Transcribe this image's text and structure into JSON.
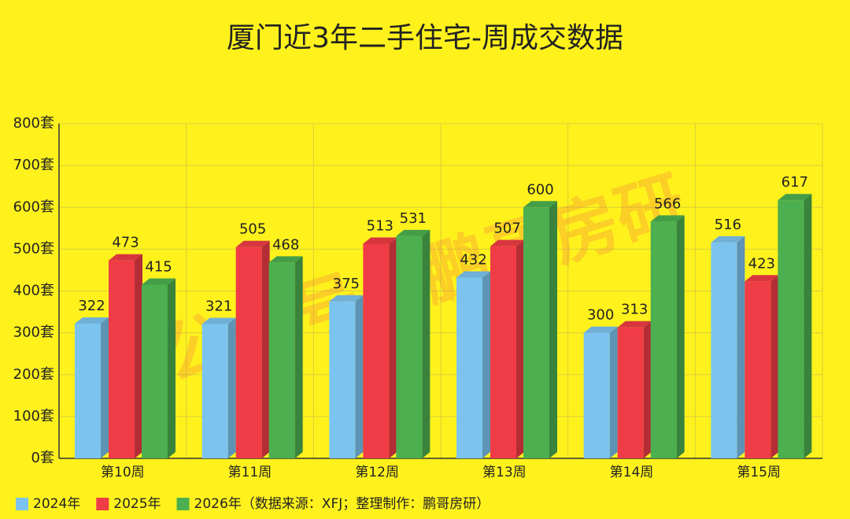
{
  "chart_data": {
    "type": "bar3d",
    "title": "厦门近3年二手住宅-周成交数据",
    "categories": [
      "第10周",
      "第11周",
      "第12周",
      "第13周",
      "第14周",
      "第15周"
    ],
    "series": [
      {
        "name": "2024年",
        "color": "#7cc4f0",
        "values": [
          322,
          321,
          375,
          432,
          300,
          516
        ]
      },
      {
        "name": "2025年",
        "color": "#f03c46",
        "values": [
          473,
          505,
          513,
          507,
          313,
          423
        ]
      },
      {
        "name": "2026年",
        "color": "#4caf50",
        "values": [
          415,
          468,
          531,
          600,
          566,
          617
        ]
      }
    ],
    "ylim": [
      0,
      800
    ],
    "yticks": [
      {
        "value": 0,
        "label": "0套"
      },
      {
        "value": 100,
        "label": "100套"
      },
      {
        "value": 200,
        "label": "200套"
      },
      {
        "value": 300,
        "label": "300套"
      },
      {
        "value": 400,
        "label": "400套"
      },
      {
        "value": 500,
        "label": "500套"
      },
      {
        "value": 600,
        "label": "600套"
      },
      {
        "value": 700,
        "label": "700套"
      },
      {
        "value": 800,
        "label": "800套"
      }
    ],
    "grid": true,
    "legend": "bottom-left",
    "source_note": "（数据来源：XFJ；整理制作：鹏哥房研）",
    "watermark": "公众号：鹏哥房研"
  }
}
